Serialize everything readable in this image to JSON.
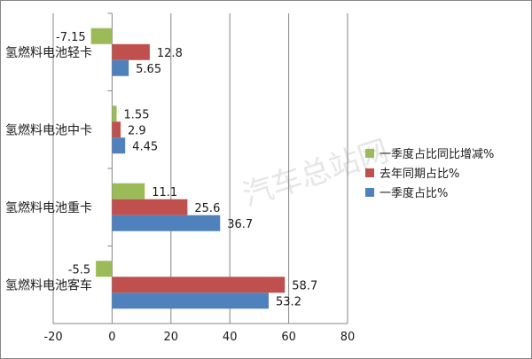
{
  "watermark": "汽车总站网",
  "chart_data": {
    "type": "bar",
    "orientation": "horizontal",
    "title": "",
    "xlim": [
      -20,
      80
    ],
    "xticks": [
      -20,
      0,
      20,
      40,
      60,
      80
    ],
    "categories": [
      "氢燃料电池轻卡",
      "氢燃料电池中卡",
      "氢燃料电池重卡",
      "氢燃料电池客车"
    ],
    "series": [
      {
        "name": "一季度占比同比增减%",
        "color": "#9bbb59",
        "values": [
          -7.15,
          1.55,
          11.1,
          -5.5
        ]
      },
      {
        "name": "去年同期占比%",
        "color": "#c0504d",
        "values": [
          12.8,
          2.9,
          25.6,
          58.7
        ]
      },
      {
        "name": "一季度占比%",
        "color": "#4f81bd",
        "values": [
          5.65,
          4.45,
          36.7,
          53.2
        ]
      }
    ],
    "data_labels": [
      [
        "-7.15",
        "1.55",
        "11.1",
        "-5.5"
      ],
      [
        "12.8",
        "2.9",
        "25.6",
        "58.7"
      ],
      [
        "5.65",
        "4.45",
        "36.7",
        "53.2"
      ]
    ],
    "grid": "vertical",
    "legend_position": "right"
  }
}
